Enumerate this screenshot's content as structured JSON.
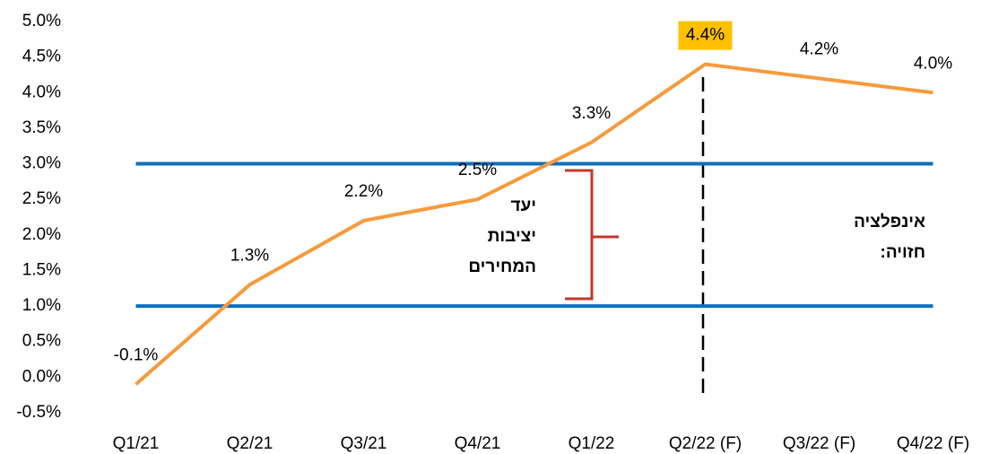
{
  "chart_data": {
    "type": "line",
    "categories": [
      "Q1/21",
      "Q2/21",
      "Q3/21",
      "Q4/21",
      "Q1/22",
      "Q2/22 (F)",
      "Q3/22 (F)",
      "Q4/22 (F)"
    ],
    "values": [
      -0.1,
      1.3,
      2.2,
      2.5,
      3.3,
      4.4,
      4.2,
      4.0
    ],
    "value_labels": [
      "-0.1%",
      "1.3%",
      "2.2%",
      "2.5%",
      "3.3%",
      "4.4%",
      "4.2%",
      "4.0%"
    ],
    "color": "#f79a3c",
    "highlight": {
      "index": 5,
      "color": "#ffc000"
    },
    "reference_lines": [
      {
        "value": 3.0,
        "color": "#0e6fbe"
      },
      {
        "value": 1.0,
        "color": "#0e6fbe"
      }
    ],
    "ylim": [
      -0.5,
      5.0
    ],
    "yticks": [
      {
        "value": -0.5,
        "label": "-0.5%"
      },
      {
        "value": 0,
        "label": "0.0%"
      },
      {
        "value": 0.5,
        "label": "0.5%"
      },
      {
        "value": 1.0,
        "label": "1.0%"
      },
      {
        "value": 1.5,
        "label": "1.5%"
      },
      {
        "value": 2.0,
        "label": "2.0%"
      },
      {
        "value": 2.5,
        "label": "2.5%"
      },
      {
        "value": 3.0,
        "label": "3.0%"
      },
      {
        "value": 3.5,
        "label": "3.5%"
      },
      {
        "value": 4.0,
        "label": "4.0%"
      },
      {
        "value": 4.5,
        "label": "4.5%"
      },
      {
        "value": 5.0,
        "label": "5.0%"
      }
    ],
    "grid": true,
    "annotations": [
      {
        "lines": [
          "יעד",
          "יציבות",
          "המחירים"
        ]
      },
      {
        "lines": [
          "אינפלציה",
          "חזויה:"
        ]
      }
    ]
  }
}
